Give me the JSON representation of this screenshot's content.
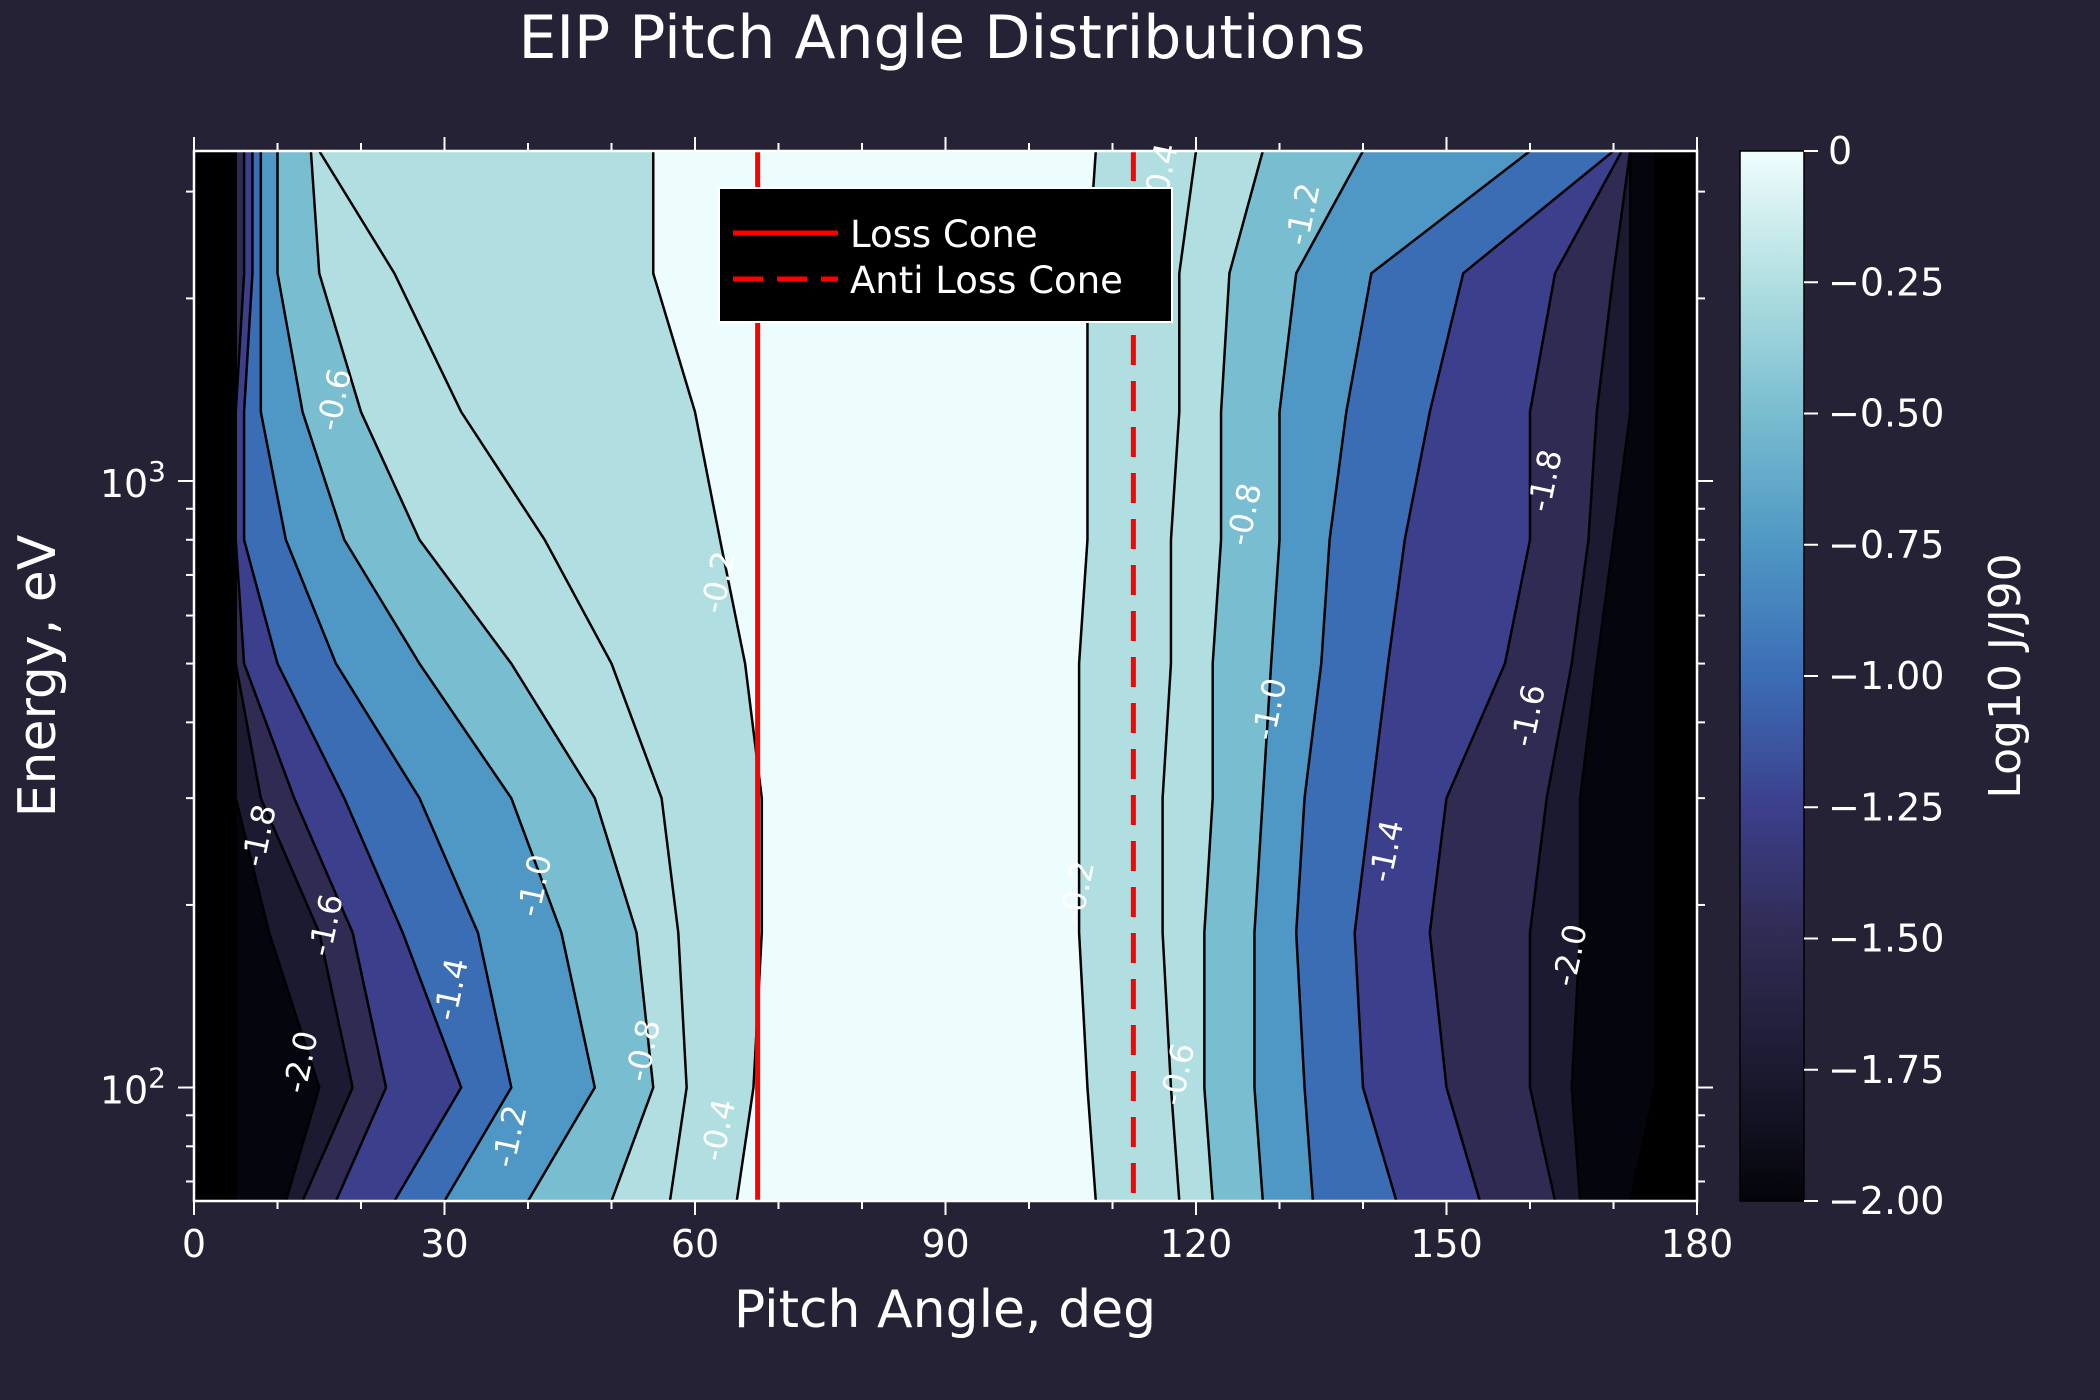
{
  "chart_data": {
    "type": "contour",
    "title": "EIP Pitch Angle Distributions",
    "xlabel": "Pitch Angle, deg",
    "ylabel": "Energy, eV",
    "xlim": [
      0,
      180
    ],
    "ylim": [
      65,
      3500
    ],
    "yscale": "log",
    "xticks": [
      0,
      30,
      60,
      90,
      120,
      150,
      180
    ],
    "xtick_labels": [
      "0",
      "30",
      "60",
      "90",
      "120",
      "150",
      "180"
    ],
    "ytick_labels": [
      {
        "value": 1000,
        "base": "10",
        "exp": "3"
      },
      {
        "value": 100,
        "base": "10",
        "exp": "2"
      }
    ],
    "colorbar": {
      "label": "Log10 J/J90",
      "range": [
        -2.0,
        0
      ],
      "ticks": [
        0,
        -0.25,
        -0.5,
        -0.75,
        -1.0,
        -1.25,
        -1.5,
        -1.75,
        -2.0
      ],
      "tick_labels": [
        "0",
        "−0.25",
        "−0.50",
        "−0.75",
        "−1.00",
        "−1.25",
        "−1.50",
        "−1.75",
        "−2.00"
      ],
      "colors": [
        "#05050d",
        "#1b1a30",
        "#302b52",
        "#3c3f8c",
        "#3b6db5",
        "#4f97c4",
        "#79bdd0",
        "#b1dfe1",
        "#edfcfd"
      ]
    },
    "contour_levels": [
      -2.0,
      -1.8,
      -1.6,
      -1.4,
      -1.2,
      -1.0,
      -0.8,
      -0.6,
      -0.4,
      -0.2
    ],
    "contour_labels": [
      {
        "text": "-2.0",
        "x": 13,
        "e": 110
      },
      {
        "text": "-1.8",
        "x": 8,
        "e": 260
      },
      {
        "text": "-1.6",
        "x": 16,
        "e": 185
      },
      {
        "text": "-1.4",
        "x": 31,
        "e": 145
      },
      {
        "text": "-1.2",
        "x": 38,
        "e": 83
      },
      {
        "text": "-1.0",
        "x": 41,
        "e": 215
      },
      {
        "text": "-0.8",
        "x": 54,
        "e": 115
      },
      {
        "text": "-0.6",
        "x": 17,
        "e": 1360
      },
      {
        "text": "-0.4",
        "x": 63,
        "e": 85
      },
      {
        "text": "-0.2",
        "x": 63,
        "e": 680
      },
      {
        "text": "-0.2",
        "x": 106,
        "e": 210
      },
      {
        "text": "-0.4",
        "x": 116,
        "e": 3200
      },
      {
        "text": "-0.6",
        "x": 118,
        "e": 105
      },
      {
        "text": "-0.8",
        "x": 126,
        "e": 880
      },
      {
        "text": "-1.0",
        "x": 129,
        "e": 420
      },
      {
        "text": "-1.2",
        "x": 133,
        "e": 2750
      },
      {
        "text": "-1.4",
        "x": 143,
        "e": 245
      },
      {
        "text": "-1.6",
        "x": 160,
        "e": 410
      },
      {
        "text": "-1.8",
        "x": 162,
        "e": 1000
      },
      {
        "text": "-2.0",
        "x": 165,
        "e": 165
      }
    ],
    "series": [
      {
        "name": "Loss Cone",
        "x": 67.5,
        "style": "solid",
        "color": "#ff0000"
      },
      {
        "name": "Anti Loss Cone",
        "x": 112.5,
        "style": "dashed",
        "color": "#ff0000"
      }
    ],
    "legend_position": "top-center"
  }
}
